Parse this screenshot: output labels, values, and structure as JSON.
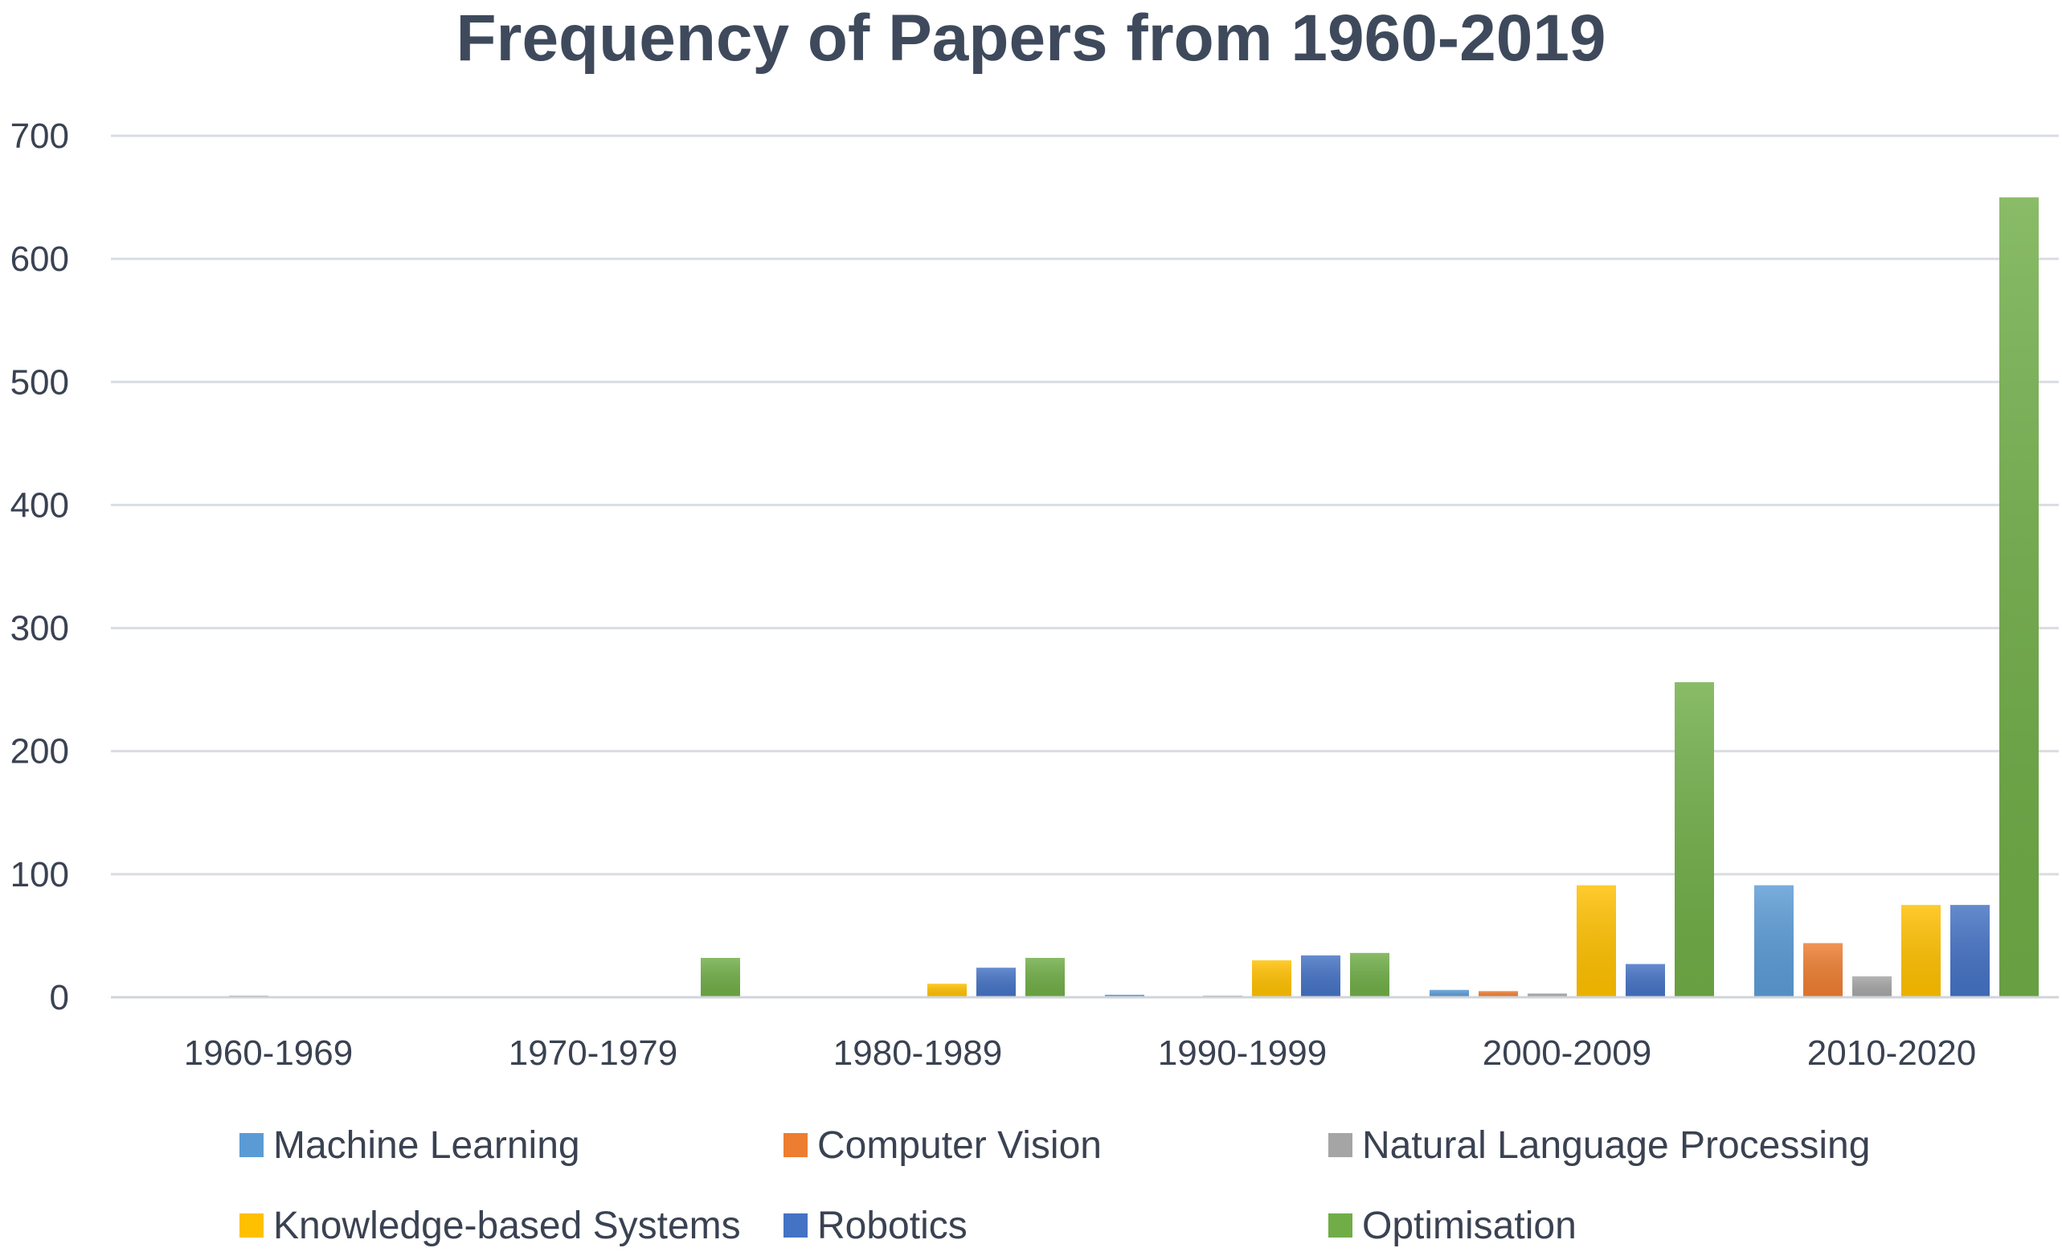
{
  "chart_data": {
    "type": "bar",
    "title": "Frequency of Papers from 1960-2019",
    "xlabel": "",
    "ylabel": "",
    "ylim": [
      0,
      700
    ],
    "yticks": [
      0,
      100,
      200,
      300,
      400,
      500,
      600,
      700
    ],
    "grid": true,
    "legend_placement": "bottom",
    "categories": [
      "1960-1969",
      "1970-1979",
      "1980-1989",
      "1990-1999",
      "2000-2009",
      "2010-2020"
    ],
    "series": [
      {
        "name": "Machine Learning",
        "color": "#5b9bd5",
        "values": [
          0,
          0,
          0,
          2,
          6,
          91
        ]
      },
      {
        "name": "Computer Vision",
        "color": "#ed7d31",
        "values": [
          0,
          0,
          0,
          0,
          5,
          44
        ]
      },
      {
        "name": "Natural Language Processing",
        "color": "#a5a5a5",
        "values": [
          1,
          0,
          0,
          1,
          3,
          17
        ]
      },
      {
        "name": "Knowledge-based Systems",
        "color": "#ffc000",
        "values": [
          0,
          0,
          11,
          30,
          91,
          75
        ]
      },
      {
        "name": "Robotics",
        "color": "#4472c4",
        "values": [
          0,
          0,
          24,
          34,
          27,
          75
        ]
      },
      {
        "name": "Optimisation",
        "color": "#70ad47",
        "values": [
          0,
          32,
          32,
          36,
          256,
          650
        ]
      }
    ]
  }
}
